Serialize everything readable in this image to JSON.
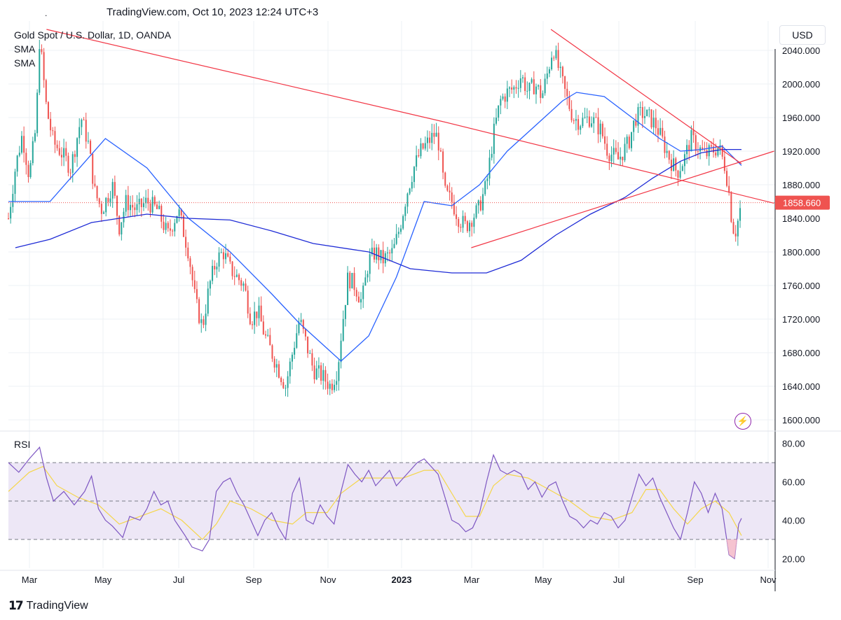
{
  "header": {
    "title": "TradingView.com, Oct 10, 2023 12:24 UTC+3",
    "dot": "."
  },
  "symbol": "Gold Spot / U.S. Dollar, 1D, OANDA",
  "indicators": [
    "SMA",
    "SMA"
  ],
  "currency": "USD",
  "rsi_label": "RSI",
  "footer": {
    "brand": "TradingView"
  },
  "colors": {
    "up": "#26a69a",
    "down": "#ef5350",
    "trendline": "#f23645",
    "sma_fast": "#2962ff",
    "sma_slow": "#1e2bd6",
    "rsi": "#7e57c2",
    "rsi_ma": "#ffeb3b",
    "rsi_band": "#ede7f6",
    "price_tag": "#ef5350"
  },
  "icons": {
    "alert": "lightning-icon"
  },
  "chart_data": [
    {
      "type": "candlestick",
      "title": "Gold Spot / U.S. Dollar, 1D, OANDA",
      "ylim": [
        1590,
        2075
      ],
      "y_ticks": [
        "2040.000",
        "2000.000",
        "1960.000",
        "1920.000",
        "1880.000",
        "1840.000",
        "1800.000",
        "1760.000",
        "1720.000",
        "1680.000",
        "1640.000",
        "1600.000"
      ],
      "x_ticks": [
        "Mar",
        "May",
        "Jul",
        "Sep",
        "Nov",
        "2023",
        "Mar",
        "May",
        "Jul",
        "Sep",
        "Nov"
      ],
      "last_price": "1858.660",
      "last_value": 1858.66,
      "close_approx": {
        "points": [
          [
            0,
            1840
          ],
          [
            10,
            1900
          ],
          [
            20,
            1940
          ],
          [
            30,
            1890
          ],
          [
            40,
            1950
          ],
          [
            45,
            2055
          ],
          [
            55,
            1970
          ],
          [
            65,
            1930
          ],
          [
            75,
            1920
          ],
          [
            90,
            1900
          ],
          [
            105,
            1960
          ],
          [
            115,
            1930
          ],
          [
            125,
            1870
          ],
          [
            135,
            1850
          ],
          [
            150,
            1880
          ],
          [
            160,
            1830
          ],
          [
            170,
            1860
          ],
          [
            185,
            1850
          ],
          [
            200,
            1860
          ],
          [
            215,
            1850
          ],
          [
            230,
            1820
          ],
          [
            245,
            1850
          ],
          [
            260,
            1800
          ],
          [
            270,
            1740
          ],
          [
            280,
            1710
          ],
          [
            290,
            1760
          ],
          [
            300,
            1790
          ],
          [
            310,
            1800
          ],
          [
            320,
            1780
          ],
          [
            340,
            1760
          ],
          [
            350,
            1720
          ],
          [
            360,
            1730
          ],
          [
            370,
            1700
          ],
          [
            385,
            1670
          ],
          [
            400,
            1640
          ],
          [
            410,
            1680
          ],
          [
            420,
            1720
          ],
          [
            430,
            1690
          ],
          [
            440,
            1660
          ],
          [
            455,
            1650
          ],
          [
            465,
            1640
          ],
          [
            475,
            1660
          ],
          [
            480,
            1700
          ],
          [
            490,
            1770
          ],
          [
            500,
            1760
          ],
          [
            510,
            1740
          ],
          [
            520,
            1790
          ],
          [
            530,
            1800
          ],
          [
            540,
            1790
          ],
          [
            555,
            1800
          ],
          [
            565,
            1830
          ],
          [
            575,
            1870
          ],
          [
            585,
            1900
          ],
          [
            595,
            1920
          ],
          [
            605,
            1930
          ],
          [
            615,
            1940
          ],
          [
            620,
            1935
          ],
          [
            630,
            1870
          ],
          [
            640,
            1860
          ],
          [
            650,
            1840
          ],
          [
            660,
            1830
          ],
          [
            668,
            1840
          ],
          [
            678,
            1850
          ],
          [
            690,
            1880
          ],
          [
            700,
            1940
          ],
          [
            710,
            1980
          ],
          [
            720,
            1990
          ],
          [
            730,
            1995
          ],
          [
            740,
            2010
          ],
          [
            750,
            1990
          ],
          [
            760,
            2000
          ],
          [
            770,
            1985
          ],
          [
            780,
            2020
          ],
          [
            786,
            2045
          ],
          [
            795,
            2015
          ],
          [
            805,
            1985
          ],
          [
            815,
            1960
          ],
          [
            825,
            1955
          ],
          [
            840,
            1960
          ],
          [
            855,
            1945
          ],
          [
            865,
            1920
          ],
          [
            880,
            1910
          ],
          [
            895,
            1930
          ],
          [
            905,
            1960
          ],
          [
            915,
            1965
          ],
          [
            925,
            1960
          ],
          [
            935,
            1950
          ],
          [
            945,
            1930
          ],
          [
            955,
            1910
          ],
          [
            965,
            1895
          ],
          [
            975,
            1910
          ],
          [
            985,
            1935
          ],
          [
            995,
            1925
          ],
          [
            1005,
            1915
          ],
          [
            1015,
            1920
          ],
          [
            1025,
            1925
          ],
          [
            1035,
            1900
          ],
          [
            1040,
            1870
          ],
          [
            1045,
            1830
          ],
          [
            1050,
            1825
          ],
          [
            1058,
            1858.66
          ]
        ]
      },
      "sma_fast_approx": [
        [
          0,
          1860
        ],
        [
          60,
          1860
        ],
        [
          140,
          1935
        ],
        [
          200,
          1900
        ],
        [
          260,
          1840
        ],
        [
          320,
          1800
        ],
        [
          380,
          1750
        ],
        [
          420,
          1715
        ],
        [
          460,
          1685
        ],
        [
          480,
          1670
        ],
        [
          520,
          1700
        ],
        [
          560,
          1770
        ],
        [
          600,
          1860
        ],
        [
          640,
          1855
        ],
        [
          680,
          1880
        ],
        [
          720,
          1920
        ],
        [
          760,
          1950
        ],
        [
          800,
          1980
        ],
        [
          820,
          1990
        ],
        [
          860,
          1985
        ],
        [
          900,
          1960
        ],
        [
          940,
          1935
        ],
        [
          970,
          1920
        ],
        [
          1000,
          1922
        ],
        [
          1030,
          1926
        ],
        [
          1058,
          1903
        ]
      ],
      "sma_slow_approx": [
        [
          10,
          1805
        ],
        [
          60,
          1815
        ],
        [
          120,
          1835
        ],
        [
          200,
          1845
        ],
        [
          260,
          1840
        ],
        [
          320,
          1838
        ],
        [
          380,
          1825
        ],
        [
          440,
          1810
        ],
        [
          520,
          1800
        ],
        [
          580,
          1780
        ],
        [
          640,
          1775
        ],
        [
          690,
          1775
        ],
        [
          740,
          1790
        ],
        [
          790,
          1820
        ],
        [
          840,
          1845
        ],
        [
          890,
          1865
        ],
        [
          930,
          1888
        ],
        [
          970,
          1908
        ],
        [
          1000,
          1918
        ],
        [
          1030,
          1922
        ],
        [
          1058,
          1922
        ]
      ],
      "trendlines": [
        {
          "from": [
            55,
            2065
          ],
          "to": [
            628,
            1955
          ]
        },
        {
          "from": [
            628,
            1955
          ],
          "to": [
            1105,
            1858
          ]
        },
        {
          "from": [
            668,
            1805
          ],
          "to": [
            1105,
            1920
          ]
        },
        {
          "from": [
            783,
            2065
          ],
          "to": [
            1058,
            1905
          ]
        }
      ]
    },
    {
      "type": "line",
      "title": "RSI",
      "ylim": [
        15,
        85
      ],
      "y_ticks": [
        "80.00",
        "60.00",
        "40.00",
        "20.00"
      ],
      "bands": [
        30,
        70
      ],
      "midline": 50,
      "rsi_approx": [
        [
          0,
          70
        ],
        [
          15,
          65
        ],
        [
          30,
          72
        ],
        [
          45,
          78
        ],
        [
          55,
          62
        ],
        [
          65,
          50
        ],
        [
          80,
          55
        ],
        [
          95,
          48
        ],
        [
          110,
          55
        ],
        [
          120,
          63
        ],
        [
          130,
          46
        ],
        [
          140,
          40
        ],
        [
          150,
          37
        ],
        [
          165,
          31
        ],
        [
          175,
          42
        ],
        [
          190,
          40
        ],
        [
          200,
          46
        ],
        [
          210,
          55
        ],
        [
          220,
          48
        ],
        [
          230,
          50
        ],
        [
          240,
          40
        ],
        [
          255,
          32
        ],
        [
          265,
          26
        ],
        [
          280,
          24
        ],
        [
          290,
          30
        ],
        [
          300,
          55
        ],
        [
          310,
          60
        ],
        [
          320,
          62
        ],
        [
          330,
          54
        ],
        [
          340,
          48
        ],
        [
          350,
          40
        ],
        [
          360,
          32
        ],
        [
          370,
          40
        ],
        [
          380,
          44
        ],
        [
          390,
          36
        ],
        [
          400,
          30
        ],
        [
          410,
          54
        ],
        [
          420,
          62
        ],
        [
          430,
          40
        ],
        [
          440,
          38
        ],
        [
          450,
          48
        ],
        [
          460,
          42
        ],
        [
          470,
          38
        ],
        [
          480,
          55
        ],
        [
          490,
          69
        ],
        [
          500,
          64
        ],
        [
          510,
          60
        ],
        [
          520,
          66
        ],
        [
          530,
          58
        ],
        [
          540,
          62
        ],
        [
          550,
          66
        ],
        [
          560,
          58
        ],
        [
          570,
          62
        ],
        [
          580,
          66
        ],
        [
          590,
          70
        ],
        [
          600,
          72
        ],
        [
          610,
          68
        ],
        [
          620,
          64
        ],
        [
          630,
          52
        ],
        [
          640,
          40
        ],
        [
          650,
          38
        ],
        [
          660,
          34
        ],
        [
          670,
          36
        ],
        [
          680,
          44
        ],
        [
          690,
          60
        ],
        [
          700,
          74
        ],
        [
          710,
          66
        ],
        [
          720,
          64
        ],
        [
          730,
          66
        ],
        [
          740,
          64
        ],
        [
          750,
          56
        ],
        [
          760,
          60
        ],
        [
          770,
          52
        ],
        [
          780,
          58
        ],
        [
          790,
          60
        ],
        [
          800,
          50
        ],
        [
          810,
          42
        ],
        [
          820,
          40
        ],
        [
          830,
          36
        ],
        [
          840,
          40
        ],
        [
          850,
          38
        ],
        [
          860,
          44
        ],
        [
          870,
          42
        ],
        [
          880,
          36
        ],
        [
          890,
          40
        ],
        [
          900,
          52
        ],
        [
          910,
          64
        ],
        [
          920,
          58
        ],
        [
          930,
          62
        ],
        [
          940,
          52
        ],
        [
          950,
          44
        ],
        [
          960,
          36
        ],
        [
          970,
          30
        ],
        [
          980,
          44
        ],
        [
          990,
          60
        ],
        [
          1000,
          54
        ],
        [
          1010,
          44
        ],
        [
          1020,
          54
        ],
        [
          1030,
          46
        ],
        [
          1040,
          22
        ],
        [
          1048,
          20
        ],
        [
          1054,
          38
        ],
        [
          1058,
          41
        ]
      ],
      "rsi_ma_approx": [
        [
          0,
          55
        ],
        [
          30,
          65
        ],
        [
          50,
          68
        ],
        [
          70,
          58
        ],
        [
          100,
          52
        ],
        [
          130,
          48
        ],
        [
          160,
          38
        ],
        [
          190,
          42
        ],
        [
          220,
          46
        ],
        [
          250,
          40
        ],
        [
          280,
          30
        ],
        [
          300,
          38
        ],
        [
          320,
          50
        ],
        [
          350,
          46
        ],
        [
          380,
          40
        ],
        [
          410,
          38
        ],
        [
          430,
          44
        ],
        [
          460,
          44
        ],
        [
          480,
          54
        ],
        [
          510,
          62
        ],
        [
          540,
          62
        ],
        [
          570,
          62
        ],
        [
          600,
          66
        ],
        [
          620,
          66
        ],
        [
          640,
          54
        ],
        [
          660,
          42
        ],
        [
          680,
          42
        ],
        [
          700,
          58
        ],
        [
          720,
          64
        ],
        [
          750,
          62
        ],
        [
          780,
          56
        ],
        [
          810,
          50
        ],
        [
          840,
          42
        ],
        [
          870,
          40
        ],
        [
          900,
          44
        ],
        [
          920,
          56
        ],
        [
          940,
          56
        ],
        [
          960,
          46
        ],
        [
          980,
          38
        ],
        [
          1000,
          46
        ],
        [
          1020,
          50
        ],
        [
          1040,
          44
        ],
        [
          1058,
          32
        ]
      ]
    }
  ]
}
